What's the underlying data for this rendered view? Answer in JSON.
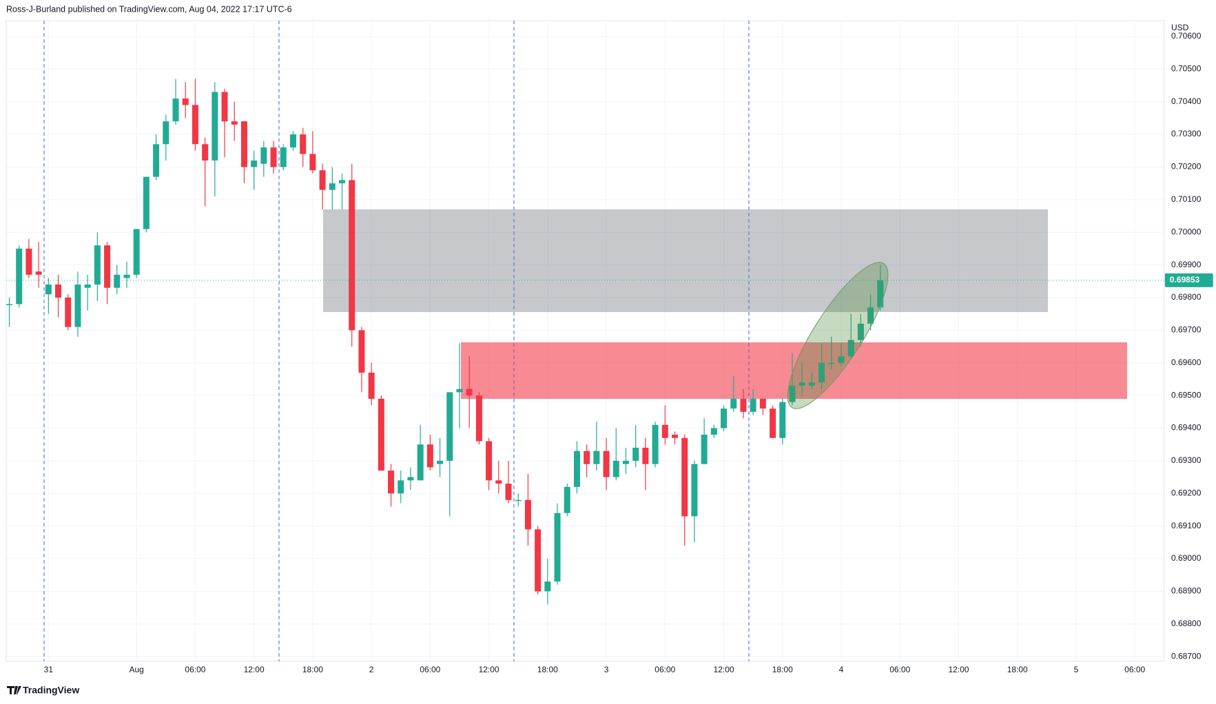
{
  "header": {
    "text": "Ross-J-Burland published on TradingView.com, Aug 04, 2022 17:17 UTC-6"
  },
  "footer": {
    "brand": "TradingView"
  },
  "chart_data": {
    "type": "candlestick",
    "y_axis_label": "USD",
    "up_color": "#22ab94",
    "down_color": "#f23645",
    "grid": true,
    "open": [
      0.6978,
      0.6978,
      0.6995,
      0.6988,
      0.6981,
      0.6984,
      0.698,
      0.6971,
      0.6983,
      0.6984,
      0.6996,
      0.6983,
      0.6986,
      0.6987,
      0.7001,
      0.7017,
      0.7027,
      0.7034,
      0.7041,
      0.7039,
      0.7027,
      0.7022,
      0.7043,
      0.7034,
      0.7034,
      0.702,
      0.7021,
      0.7026,
      0.702,
      0.7026,
      0.703,
      0.7024,
      0.7019,
      0.7013,
      0.7015,
      0.7016,
      0.697,
      0.6957,
      0.6949,
      0.6927,
      0.692,
      0.6924,
      0.6924,
      0.6935,
      0.6929,
      0.693,
      0.6951,
      0.6952,
      0.695,
      0.6936,
      0.6924,
      0.6923,
      0.6918,
      0.6918,
      0.6909,
      0.689,
      0.6893,
      0.6914,
      0.6922,
      0.6933,
      0.6929,
      0.6933,
      0.6925,
      0.6929,
      0.693,
      0.6934,
      0.6929,
      0.6941,
      0.6938,
      0.6937,
      0.6913,
      0.6929,
      0.6938,
      0.694,
      0.6946,
      0.6949,
      0.6945,
      0.6949,
      0.6946,
      0.6937,
      0.6948,
      0.6953,
      0.6953,
      0.6954,
      0.696,
      0.696,
      0.6962,
      0.6967,
      0.6972,
      0.6977
    ],
    "high": [
      0.698,
      0.6996,
      0.6998,
      0.6997,
      0.6986,
      0.6987,
      0.6981,
      0.6988,
      0.6987,
      0.7,
      0.6997,
      0.699,
      0.6991,
      0.7001,
      0.7017,
      0.703,
      0.7036,
      0.7047,
      0.7046,
      0.7047,
      0.7029,
      0.7046,
      0.7044,
      0.704,
      0.7034,
      0.7025,
      0.7028,
      0.7028,
      0.7027,
      0.7031,
      0.7032,
      0.7031,
      0.7021,
      0.702,
      0.7018,
      0.7021,
      0.6971,
      0.696,
      0.695,
      0.6929,
      0.6927,
      0.6928,
      0.6941,
      0.6938,
      0.6937,
      0.6951,
      0.6966,
      0.6962,
      0.6951,
      0.6937,
      0.693,
      0.693,
      0.692,
      0.6926,
      0.691,
      0.69,
      0.6917,
      0.6923,
      0.6936,
      0.6935,
      0.6942,
      0.6937,
      0.694,
      0.6934,
      0.6941,
      0.6937,
      0.6942,
      0.6947,
      0.6939,
      0.6938,
      0.693,
      0.6943,
      0.6941,
      0.6947,
      0.6956,
      0.6952,
      0.6952,
      0.6949,
      0.6947,
      0.6949,
      0.6963,
      0.696,
      0.6957,
      0.6966,
      0.6968,
      0.6966,
      0.6975,
      0.6975,
      0.6981,
      0.699
    ],
    "low": [
      0.6971,
      0.6977,
      0.6986,
      0.6983,
      0.6975,
      0.6974,
      0.697,
      0.6968,
      0.6976,
      0.6979,
      0.6978,
      0.6981,
      0.6983,
      0.6986,
      0.7,
      0.7016,
      0.7022,
      0.7033,
      0.7035,
      0.7025,
      0.7008,
      0.7011,
      0.7023,
      0.7028,
      0.7015,
      0.7013,
      0.7017,
      0.7018,
      0.7019,
      0.7025,
      0.702,
      0.7018,
      0.7007,
      0.7007,
      0.7007,
      0.6965,
      0.6951,
      0.6947,
      0.6927,
      0.6916,
      0.6917,
      0.6921,
      0.6924,
      0.6927,
      0.6925,
      0.6913,
      0.694,
      0.694,
      0.6935,
      0.6921,
      0.692,
      0.6917,
      0.6916,
      0.6904,
      0.6889,
      0.6886,
      0.6892,
      0.6913,
      0.692,
      0.6925,
      0.6927,
      0.6921,
      0.6924,
      0.6926,
      0.6928,
      0.6921,
      0.6928,
      0.6935,
      0.6935,
      0.6904,
      0.6905,
      0.6929,
      0.6937,
      0.6939,
      0.6945,
      0.6943,
      0.6944,
      0.6944,
      0.6937,
      0.6935,
      0.6947,
      0.695,
      0.6952,
      0.6952,
      0.6958,
      0.6959,
      0.6961,
      0.6965,
      0.697,
      0.6976
    ],
    "close": [
      0.6978,
      0.6995,
      0.6987,
      0.6987,
      0.6984,
      0.698,
      0.6971,
      0.6984,
      0.6984,
      0.6996,
      0.6983,
      0.6987,
      0.6987,
      0.7001,
      0.7017,
      0.7027,
      0.7034,
      0.7041,
      0.7039,
      0.7027,
      0.7022,
      0.7043,
      0.7034,
      0.7033,
      0.702,
      0.7022,
      0.7026,
      0.702,
      0.7026,
      0.703,
      0.7024,
      0.7019,
      0.7013,
      0.7015,
      0.7016,
      0.697,
      0.6957,
      0.6949,
      0.6927,
      0.692,
      0.6924,
      0.6925,
      0.6935,
      0.6928,
      0.693,
      0.6951,
      0.6952,
      0.695,
      0.6936,
      0.6924,
      0.6923,
      0.6918,
      0.6918,
      0.6909,
      0.689,
      0.6893,
      0.6914,
      0.6922,
      0.6933,
      0.6929,
      0.6933,
      0.6925,
      0.693,
      0.693,
      0.6934,
      0.6929,
      0.6941,
      0.6937,
      0.6937,
      0.6913,
      0.6929,
      0.6938,
      0.694,
      0.6946,
      0.6949,
      0.6945,
      0.6949,
      0.6946,
      0.6937,
      0.6948,
      0.6953,
      0.6954,
      0.6954,
      0.696,
      0.696,
      0.6962,
      0.6967,
      0.6972,
      0.6977,
      0.69853
    ],
    "xlim": [
      -0.5,
      118
    ],
    "xticks": [
      {
        "value": 4,
        "label": "31"
      },
      {
        "value": 13,
        "label": "Aug"
      },
      {
        "value": 19,
        "label": "06:00"
      },
      {
        "value": 25,
        "label": "12:00"
      },
      {
        "value": 31,
        "label": "18:00"
      },
      {
        "value": 37,
        "label": "2"
      },
      {
        "value": 43,
        "label": "06:00"
      },
      {
        "value": 49,
        "label": "12:00"
      },
      {
        "value": 55,
        "label": "18:00"
      },
      {
        "value": 61,
        "label": "3"
      },
      {
        "value": 67,
        "label": "06:00"
      },
      {
        "value": 73,
        "label": "12:00"
      },
      {
        "value": 79,
        "label": "18:00"
      },
      {
        "value": 85,
        "label": "4"
      },
      {
        "value": 91,
        "label": "06:00"
      },
      {
        "value": 97,
        "label": "12:00"
      },
      {
        "value": 103,
        "label": "18:00"
      },
      {
        "value": 109,
        "label": "5"
      },
      {
        "value": 115,
        "label": "06:00"
      }
    ],
    "ylim": [
      0.68695,
      0.70645
    ],
    "yticks": [
      {
        "value": 0.687,
        "label": "0.68700"
      },
      {
        "value": 0.688,
        "label": "0.68800"
      },
      {
        "value": 0.689,
        "label": "0.68900"
      },
      {
        "value": 0.69,
        "label": "0.69000"
      },
      {
        "value": 0.691,
        "label": "0.69100"
      },
      {
        "value": 0.692,
        "label": "0.69200"
      },
      {
        "value": 0.693,
        "label": "0.69300"
      },
      {
        "value": 0.694,
        "label": "0.69400"
      },
      {
        "value": 0.695,
        "label": "0.69500"
      },
      {
        "value": 0.696,
        "label": "0.69600"
      },
      {
        "value": 0.697,
        "label": "0.69700"
      },
      {
        "value": 0.698,
        "label": "0.69800"
      },
      {
        "value": 0.699,
        "label": "0.69900"
      },
      {
        "value": 0.7,
        "label": "0.70000"
      },
      {
        "value": 0.701,
        "label": "0.70100"
      },
      {
        "value": 0.702,
        "label": "0.70200"
      },
      {
        "value": 0.703,
        "label": "0.70300"
      },
      {
        "value": 0.704,
        "label": "0.70400"
      },
      {
        "value": 0.705,
        "label": "0.70500"
      },
      {
        "value": 0.706,
        "label": "0.70600"
      }
    ]
  }
}
